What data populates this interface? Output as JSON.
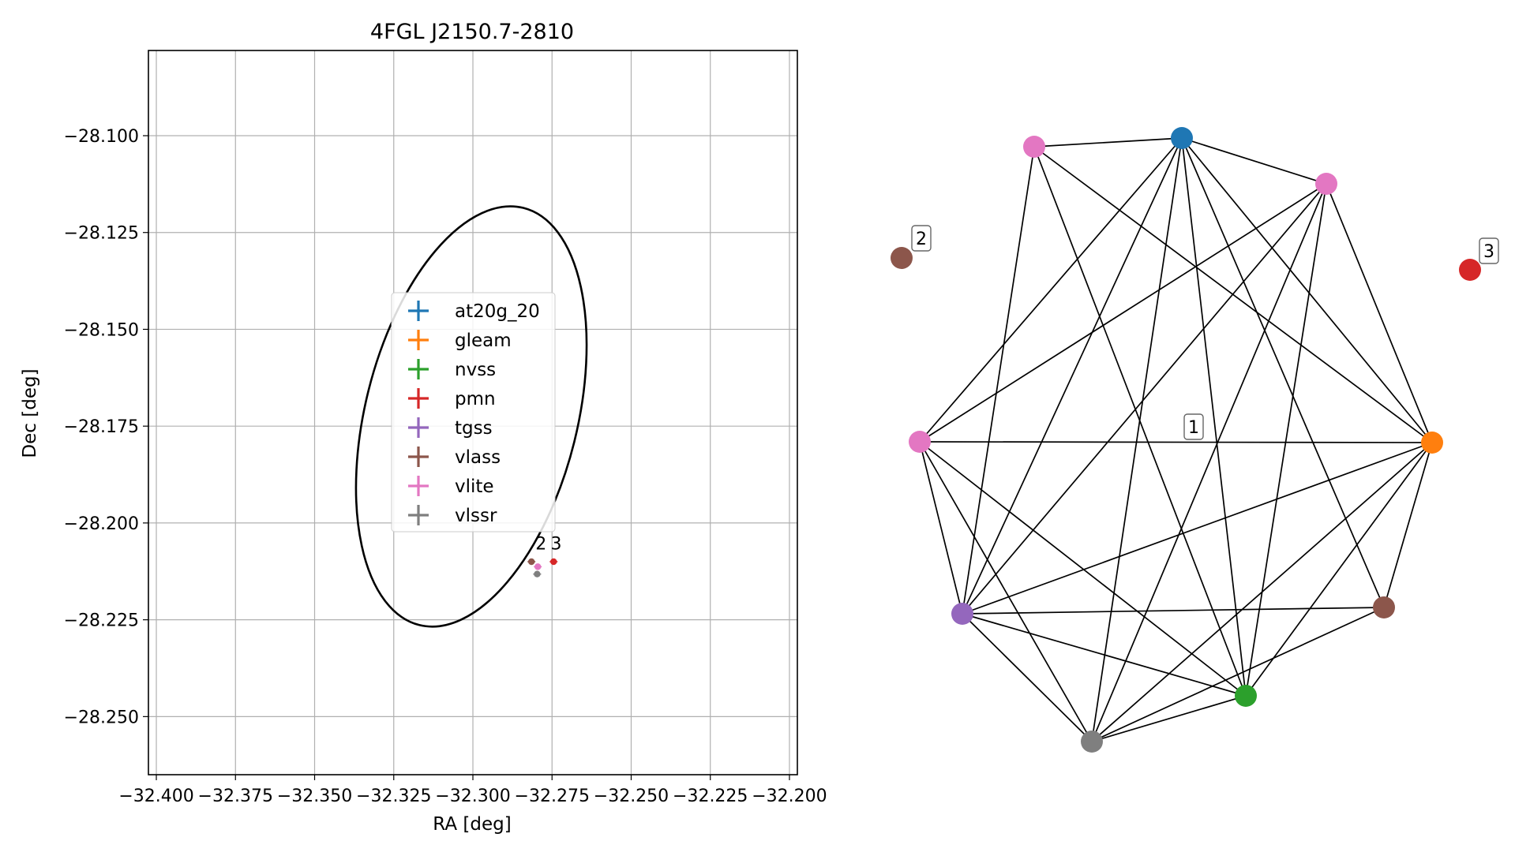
{
  "chart_data": [
    {
      "type": "scatter",
      "title": "4FGL J2150.7-2810",
      "xlabel": "RA [deg]",
      "ylabel": "Dec [deg]",
      "xlim": [
        -32.4025,
        -32.1975
      ],
      "ylim": [
        -28.265,
        -28.078
      ],
      "grid": true,
      "x_ticks": [
        -32.4,
        -32.375,
        -32.35,
        -32.325,
        -32.3,
        -32.275,
        -32.25,
        -32.225,
        -32.2
      ],
      "x_tick_labels": [
        "−32.400",
        "−32.375",
        "−32.350",
        "−32.325",
        "−32.300",
        "−32.275",
        "−32.250",
        "−32.225",
        "−32.200"
      ],
      "y_ticks": [
        -28.1,
        -28.125,
        -28.15,
        -28.175,
        -28.2,
        -28.225,
        -28.25
      ],
      "y_tick_labels": [
        "−28.100",
        "−28.125",
        "−28.150",
        "−28.175",
        "−28.200",
        "−28.225",
        "−28.250"
      ],
      "ellipse": {
        "center": [
          -32.3005,
          -28.1725
        ],
        "ra_radius": 0.0335,
        "dec_radius": 0.0555,
        "rotation_deg": 14,
        "color": "#000000"
      },
      "legend_position": "center",
      "series": [
        {
          "name": "at20g_20",
          "color": "#1f77b4",
          "points": []
        },
        {
          "name": "gleam",
          "color": "#ff7f0e",
          "points": []
        },
        {
          "name": "nvss",
          "color": "#2ca02c",
          "points": []
        },
        {
          "name": "pmn",
          "color": "#d62728",
          "points": [
            {
              "x": -32.2745,
              "y": -28.21
            }
          ]
        },
        {
          "name": "tgss",
          "color": "#9467bd",
          "points": []
        },
        {
          "name": "vlass",
          "color": "#8c564b",
          "points": [
            {
              "x": -32.2815,
              "y": -28.21
            }
          ]
        },
        {
          "name": "vlite",
          "color": "#e377c2",
          "points": [
            {
              "x": -32.2795,
              "y": -28.2113
            }
          ]
        },
        {
          "name": "vlssr",
          "color": "#7f7f7f",
          "points": [
            {
              "x": -32.2797,
              "y": -28.2132
            }
          ]
        }
      ],
      "annotations": [
        {
          "text": "2",
          "x": -32.2785,
          "y": -28.2068
        },
        {
          "text": "3",
          "x": -32.2737,
          "y": -28.2068
        }
      ]
    },
    {
      "type": "network",
      "nodes": [
        {
          "id": "at20g_20",
          "color": "#1f77b4"
        },
        {
          "id": "vlite_a",
          "color": "#e377c2"
        },
        {
          "id": "vlite_b",
          "color": "#e377c2"
        },
        {
          "id": "vlite_c",
          "color": "#e377c2"
        },
        {
          "id": "gleam",
          "color": "#ff7f0e"
        },
        {
          "id": "tgss",
          "color": "#9467bd"
        },
        {
          "id": "vlass_main",
          "color": "#8c564b"
        },
        {
          "id": "nvss",
          "color": "#2ca02c"
        },
        {
          "id": "vlssr",
          "color": "#7f7f7f"
        },
        {
          "id": "vlass_2",
          "color": "#8c564b"
        },
        {
          "id": "pmn",
          "color": "#d62728"
        }
      ],
      "edges": [
        [
          "at20g_20",
          "vlite_a"
        ],
        [
          "at20g_20",
          "vlite_b"
        ],
        [
          "at20g_20",
          "gleam"
        ],
        [
          "at20g_20",
          "vlite_c"
        ],
        [
          "at20g_20",
          "tgss"
        ],
        [
          "at20g_20",
          "vlass_main"
        ],
        [
          "at20g_20",
          "nvss"
        ],
        [
          "at20g_20",
          "vlssr"
        ],
        [
          "vlite_a",
          "gleam"
        ],
        [
          "vlite_a",
          "tgss"
        ],
        [
          "vlite_a",
          "nvss"
        ],
        [
          "vlite_b",
          "gleam"
        ],
        [
          "vlite_b",
          "vlite_c"
        ],
        [
          "vlite_b",
          "tgss"
        ],
        [
          "vlite_b",
          "nvss"
        ],
        [
          "vlite_b",
          "vlssr"
        ],
        [
          "gleam",
          "vlite_c"
        ],
        [
          "gleam",
          "tgss"
        ],
        [
          "gleam",
          "vlass_main"
        ],
        [
          "gleam",
          "nvss"
        ],
        [
          "gleam",
          "vlssr"
        ],
        [
          "vlite_c",
          "tgss"
        ],
        [
          "vlite_c",
          "nvss"
        ],
        [
          "vlite_c",
          "vlssr"
        ],
        [
          "tgss",
          "vlass_main"
        ],
        [
          "tgss",
          "nvss"
        ],
        [
          "tgss",
          "vlssr"
        ],
        [
          "vlass_main",
          "vlssr"
        ],
        [
          "nvss",
          "vlssr"
        ]
      ],
      "cluster_labels": [
        {
          "text": "1",
          "near": "center"
        },
        {
          "text": "2",
          "near": "vlass_2"
        },
        {
          "text": "3",
          "near": "pmn"
        }
      ]
    }
  ]
}
